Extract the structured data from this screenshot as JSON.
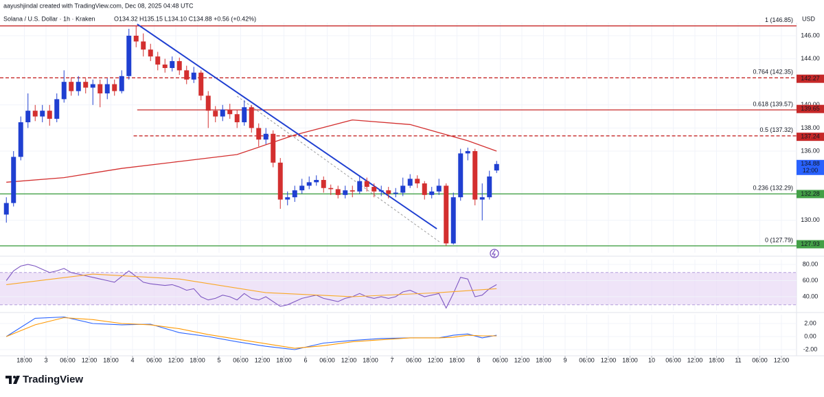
{
  "header": {
    "credit": "aayushjindal created with TradingView.com, Dec 08, 2025 04:48 UTC",
    "symbol": "Solana / U.S. Dollar · 1h · Kraken",
    "ohlc": "O134.32 H135.15 L134.10 C134.88 +0.56 (+0.42%)",
    "currency": "USD"
  },
  "chart_data": [
    {
      "type": "candlestick",
      "xlim": [
        -12.76,
        208.19
      ],
      "ylim": [
        127.19,
        147.13
      ],
      "yticks": [
        {
          "value": 130,
          "label": "130.00"
        },
        {
          "value": 136,
          "label": "136.00"
        },
        {
          "value": 138,
          "label": "138.00"
        },
        {
          "value": 140,
          "label": "140.00"
        },
        {
          "value": 144,
          "label": "144.00"
        },
        {
          "value": 146,
          "label": "146.00"
        }
      ],
      "up_color": "#1f3fd1",
      "down_color": "#d32f2f",
      "x": [
        -11,
        -9,
        -7,
        -5,
        -3,
        -1,
        1,
        3,
        5,
        7,
        9,
        11,
        13,
        15,
        17,
        19,
        21,
        23,
        25,
        27,
        29,
        31,
        33,
        35,
        37,
        39,
        41,
        43,
        45,
        47,
        49,
        51,
        53,
        55,
        57,
        59,
        61,
        63,
        65,
        67,
        69,
        71,
        73,
        75,
        77,
        79,
        81,
        83,
        85,
        87,
        89,
        91,
        93,
        95,
        97,
        99,
        101,
        103,
        105,
        107,
        109,
        111,
        113,
        115,
        117,
        119,
        121,
        123,
        125
      ],
      "open": [
        130.5,
        131.5,
        135.5,
        138.5,
        139.5,
        139,
        139.5,
        138.8,
        140.5,
        142,
        141.2,
        142,
        141.5,
        141.8,
        141,
        141.8,
        141.2,
        142.5,
        146,
        145.5,
        144.8,
        144.2,
        143.5,
        143.2,
        143.8,
        143,
        142.2,
        142.8,
        140.8,
        139.5,
        139,
        139.6,
        139.2,
        138.5,
        139.8,
        138,
        137,
        137.5,
        135,
        131.8,
        132,
        132.6,
        133,
        133.3,
        133.5,
        132.8,
        132.7,
        132.2,
        132.6,
        132.5,
        133.4,
        132.9,
        132.5,
        132.6,
        132.3,
        132.4,
        133,
        133.6,
        133.2,
        132.2,
        132.5,
        133,
        128,
        132,
        135.8,
        136,
        131.8,
        132,
        134.32
      ],
      "high": [
        132,
        136,
        139,
        141,
        140,
        140,
        140,
        141,
        143,
        142.4,
        142.5,
        142.3,
        142.2,
        142.2,
        142.3,
        142.2,
        143,
        146.6,
        146.9,
        146.2,
        145.3,
        144.6,
        144,
        144.2,
        144.1,
        143.4,
        143.3,
        143,
        141.2,
        139.9,
        140,
        140.1,
        139.6,
        140.4,
        140,
        138.4,
        138,
        137.8,
        135.4,
        132.5,
        133,
        133.6,
        133.8,
        133.9,
        133.8,
        133.1,
        133,
        133,
        133,
        133.9,
        133.7,
        133.2,
        133,
        132.9,
        132.8,
        133.7,
        134,
        133.9,
        133.4,
        132.9,
        133.6,
        133.2,
        132.4,
        136.2,
        136.3,
        136.2,
        133.2,
        134.3,
        135.15
      ],
      "low": [
        129.8,
        131.2,
        135.2,
        138,
        138.6,
        138.5,
        138.2,
        138.5,
        140.2,
        140.8,
        140.8,
        141,
        140,
        139.8,
        140.5,
        140.8,
        141,
        142.2,
        145,
        144.2,
        143.8,
        143,
        142.8,
        142.9,
        142.6,
        141.8,
        141.9,
        140.4,
        138,
        138.5,
        138.6,
        138.8,
        138,
        138.2,
        137.6,
        136.4,
        136.6,
        134.6,
        131,
        131.3,
        131.6,
        132.3,
        132.7,
        133,
        132.4,
        132.2,
        131.9,
        131.9,
        132,
        132.3,
        132.5,
        132,
        132.1,
        131.9,
        132,
        132.1,
        132.8,
        132.8,
        131.8,
        131.9,
        132.2,
        127.79,
        127.9,
        131.7,
        135.2,
        131.3,
        130,
        131.8,
        134.1
      ],
      "close": [
        131.5,
        135.5,
        138.5,
        139.5,
        139,
        139.5,
        138.8,
        140.5,
        142,
        141.2,
        142,
        141.5,
        141.8,
        141,
        141.8,
        141.2,
        142.5,
        146,
        145.5,
        144.8,
        144.2,
        143.5,
        143.2,
        143.8,
        143,
        142.2,
        142.8,
        140.8,
        139.5,
        139,
        139.6,
        139.2,
        138.5,
        139.8,
        138,
        137,
        137.5,
        135,
        131.8,
        132,
        132.6,
        133,
        133.3,
        133.5,
        132.8,
        132.7,
        132.2,
        132.6,
        132.5,
        133.4,
        132.9,
        132.5,
        132.6,
        132.3,
        132.4,
        133,
        133.6,
        133.2,
        132.2,
        132.5,
        133,
        128,
        132,
        135.8,
        136,
        131.8,
        132,
        133.8,
        134.88
      ],
      "moving_average": {
        "color": "#d32f2f",
        "x": [
          -11,
          5,
          21,
          37,
          53,
          69,
          85,
          101,
          117,
          125
        ],
        "values": [
          133.3,
          133.7,
          134.5,
          135.1,
          135.7,
          137.4,
          138.7,
          138.3,
          136.9,
          136.0
        ]
      },
      "levels": [
        {
          "value": 146.85,
          "label": "1 (146.85)",
          "color": "#c62828",
          "label_color": "#5b8fc7",
          "dashed": false,
          "x_from": -12.76
        },
        {
          "value": 142.35,
          "label": "0.764 (142.35)",
          "color": "#c62828",
          "label_color": "#c62828",
          "dashed": true,
          "x_from": -12.76
        },
        {
          "value": 139.57,
          "label": "0.618 (139.57)",
          "color": "#c62828",
          "label_color": "#26a69a",
          "dashed": false,
          "x_from": 25.3
        },
        {
          "value": 137.32,
          "label": "0.5 (137.32)",
          "color": "#c62828",
          "label_color": "#333333",
          "dashed": true,
          "x_from": 24.3
        },
        {
          "value": 132.29,
          "label": "0.236 (132.29)",
          "color": "#43a047",
          "label_color": "#555555",
          "dashed": false,
          "x_from": -12.76
        },
        {
          "value": 127.79,
          "label": "0 (127.79)",
          "color": "#43a047",
          "label_color": "#666666",
          "dashed": false,
          "x_from": -12.76
        }
      ],
      "trend_lines": [
        {
          "x": [
            25.3,
            108.4
          ],
          "y": [
            147.0,
            129.27
          ],
          "color": "#1f3fd1",
          "width": 2,
          "dash": "none"
        },
        {
          "x": [
            53,
            109.1
          ],
          "y": [
            140.76,
            128.14
          ],
          "color": "#999999",
          "width": 1,
          "dash": "3 3"
        }
      ],
      "badges": [
        {
          "value": 142.27,
          "color": "#c62828"
        },
        {
          "value": 139.65,
          "color": "#c62828"
        },
        {
          "value": 137.24,
          "color": "#c62828"
        },
        {
          "value": 134.88,
          "color": "#2962ff",
          "sub": "12:00"
        },
        {
          "value": 132.28,
          "color": "#43a047"
        },
        {
          "value": 127.93,
          "color": "#43a047"
        }
      ]
    },
    {
      "type": "line",
      "xlim": [
        -12.76,
        208.19
      ],
      "ylim": [
        22.98,
        85.96
      ],
      "band": [
        30,
        70
      ],
      "band_color": "#e8d9f5",
      "yticks": [
        {
          "value": 80,
          "label": "80.00"
        },
        {
          "value": 60,
          "label": "60.00"
        },
        {
          "value": 40,
          "label": "40.00"
        }
      ],
      "series": [
        {
          "color": "#7e57c2",
          "x": [
            -11,
            -9,
            -7,
            -5,
            -3,
            -1,
            1,
            3,
            5,
            7,
            9,
            11,
            13,
            15,
            17,
            19,
            21,
            23,
            25,
            27,
            29,
            31,
            33,
            35,
            37,
            39,
            41,
            43,
            45,
            47,
            49,
            51,
            53,
            55,
            57,
            59,
            61,
            63,
            65,
            67,
            69,
            71,
            73,
            75,
            77,
            79,
            81,
            83,
            85,
            87,
            89,
            91,
            93,
            95,
            97,
            99,
            101,
            103,
            105,
            107,
            109,
            111,
            113,
            115,
            117,
            119,
            121,
            123,
            125
          ],
          "values": [
            60,
            72,
            78,
            80,
            78,
            74,
            70,
            72,
            75,
            70,
            68,
            66,
            64,
            62,
            60,
            58,
            65,
            72,
            65,
            58,
            56,
            55,
            54,
            55,
            52,
            48,
            50,
            40,
            36,
            38,
            42,
            40,
            36,
            44,
            38,
            36,
            40,
            34,
            28,
            30,
            34,
            38,
            40,
            42,
            38,
            36,
            34,
            38,
            40,
            44,
            40,
            38,
            40,
            38,
            40,
            46,
            48,
            44,
            40,
            42,
            44,
            26,
            44,
            64,
            62,
            40,
            42,
            50,
            55
          ]
        },
        {
          "color": "#f9a825",
          "x": [
            -11,
            13,
            37,
            61,
            85,
            109,
            125
          ],
          "values": [
            55,
            68,
            62,
            45,
            40,
            45,
            50
          ]
        }
      ]
    },
    {
      "type": "line",
      "xlim": [
        -12.76,
        208.19
      ],
      "ylim": [
        -2.74,
        3.37
      ],
      "yticks": [
        {
          "value": 2,
          "label": "2.00"
        },
        {
          "value": 0,
          "label": "0.00"
        },
        {
          "value": -2,
          "label": "-2.00"
        }
      ],
      "xticks": [
        {
          "value": -6,
          "label": "18:00"
        },
        {
          "value": 0,
          "label": "3"
        },
        {
          "value": 6,
          "label": "06:00"
        },
        {
          "value": 12,
          "label": "12:00"
        },
        {
          "value": 18,
          "label": "18:00"
        },
        {
          "value": 24,
          "label": "4"
        },
        {
          "value": 30,
          "label": "06:00"
        },
        {
          "value": 36,
          "label": "12:00"
        },
        {
          "value": 42,
          "label": "18:00"
        },
        {
          "value": 48,
          "label": "5"
        },
        {
          "value": 54,
          "label": "06:00"
        },
        {
          "value": 60,
          "label": "12:00"
        },
        {
          "value": 66,
          "label": "18:00"
        },
        {
          "value": 72,
          "label": "6"
        },
        {
          "value": 78,
          "label": "06:00"
        },
        {
          "value": 84,
          "label": "12:00"
        },
        {
          "value": 90,
          "label": "18:00"
        },
        {
          "value": 96,
          "label": "7"
        },
        {
          "value": 102,
          "label": "06:00"
        },
        {
          "value": 108,
          "label": "12:00"
        },
        {
          "value": 114,
          "label": "18:00"
        },
        {
          "value": 120,
          "label": "8"
        },
        {
          "value": 126,
          "label": "06:00"
        },
        {
          "value": 132,
          "label": "12:00"
        },
        {
          "value": 138,
          "label": "18:00"
        },
        {
          "value": 144,
          "label": "9"
        },
        {
          "value": 150,
          "label": "06:00"
        },
        {
          "value": 156,
          "label": "12:00"
        },
        {
          "value": 162,
          "label": "18:00"
        },
        {
          "value": 168,
          "label": "10"
        },
        {
          "value": 174,
          "label": "06:00"
        },
        {
          "value": 180,
          "label": "12:00"
        },
        {
          "value": 186,
          "label": "18:00"
        },
        {
          "value": 192,
          "label": "11"
        },
        {
          "value": 198,
          "label": "06:00"
        },
        {
          "value": 204,
          "label": "12:00"
        }
      ],
      "series": [
        {
          "color": "#2962ff",
          "x": [
            -11,
            -3,
            5,
            13,
            21,
            29,
            37,
            45,
            53,
            61,
            69,
            77,
            85,
            93,
            101,
            109,
            113,
            117,
            121,
            125
          ],
          "values": [
            0.0,
            2.8,
            3.0,
            2.0,
            1.8,
            1.9,
            0.6,
            0.0,
            -0.8,
            -1.5,
            -2.0,
            -1.0,
            -0.6,
            -0.3,
            -0.2,
            -0.2,
            0.2,
            0.4,
            -0.2,
            0.2
          ]
        },
        {
          "color": "#ff9800",
          "x": [
            -11,
            -3,
            5,
            13,
            21,
            29,
            37,
            45,
            53,
            61,
            69,
            77,
            85,
            93,
            101,
            109,
            113,
            117,
            121,
            125
          ],
          "values": [
            0.0,
            1.8,
            2.9,
            2.6,
            2.0,
            1.8,
            1.2,
            0.3,
            -0.4,
            -1.1,
            -1.8,
            -1.4,
            -0.8,
            -0.5,
            -0.2,
            -0.2,
            -0.1,
            0.2,
            0.1,
            0.1
          ]
        }
      ]
    }
  ],
  "footer": {
    "brand": "TradingView"
  }
}
